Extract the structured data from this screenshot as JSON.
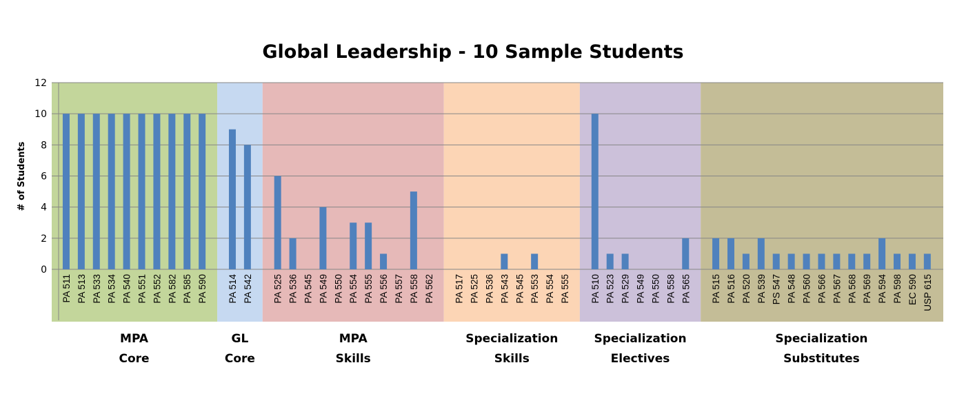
{
  "chart_data": {
    "type": "bar",
    "title": "Global Leadership - 10 Sample Students",
    "ylabel": "# of Students",
    "xlabel": "",
    "ylim": [
      0,
      12
    ],
    "yticks": [
      0,
      2,
      4,
      6,
      8,
      10,
      12
    ],
    "grid": true,
    "bar_color": "#4f81bd",
    "groups": [
      {
        "label_line1": "MPA",
        "label_line2": "Core",
        "color": "#c3d69b",
        "categories": [
          "PA 511",
          "PA 513",
          "PA 533",
          "PA 534",
          "PA 540",
          "PA 551",
          "PA 552",
          "PA 582",
          "PA 585",
          "PA 590"
        ],
        "values": [
          10,
          10,
          10,
          10,
          10,
          10,
          10,
          10,
          10,
          10
        ]
      },
      {
        "label_line1": "GL",
        "label_line2": "Core",
        "color": "#c6d9f1",
        "categories": [
          "PA 514",
          "PA 542"
        ],
        "values": [
          9,
          8
        ]
      },
      {
        "label_line1": "MPA",
        "label_line2": "Skills",
        "color": "#e6b9b8",
        "categories": [
          "PA 525",
          "PA 536",
          "PA 545",
          "PA 549",
          "PA 550",
          "PA 554",
          "PA 555",
          "PA 556",
          "PA 557",
          "PA 558",
          "PA 562"
        ],
        "values": [
          6,
          2,
          0,
          4,
          0,
          3,
          3,
          1,
          0,
          5,
          0
        ]
      },
      {
        "label_line1": "Specialization",
        "label_line2": "Skills",
        "color": "#fcd5b5",
        "categories": [
          "PA 517",
          "PA 525",
          "PA 536",
          "PA 543",
          "PA 545",
          "PA 553",
          "PA 554",
          "PA 555"
        ],
        "values": [
          0,
          0,
          0,
          1,
          0,
          1,
          0,
          0
        ]
      },
      {
        "label_line1": "Specialization",
        "label_line2": "Electives",
        "color": "#ccc1da",
        "categories": [
          "PA 510",
          "PA 523",
          "PA 529",
          "PA 549",
          "PA 550",
          "PA 558",
          "PA 565"
        ],
        "values": [
          10,
          1,
          1,
          0,
          0,
          0,
          2
        ]
      },
      {
        "label_line1": "Specialization",
        "label_line2": "Substitutes",
        "color": "#c4bd97",
        "categories": [
          "PA 515",
          "PA 516",
          "PA 520",
          "PA 539",
          "PS 547",
          "PA 548",
          "PA 560",
          "PA 566",
          "PA 567",
          "PA 568",
          "PA 569",
          "PA 594",
          "PA 598",
          "EC 590",
          "USP 615"
        ],
        "values": [
          2,
          2,
          1,
          2,
          1,
          1,
          1,
          1,
          1,
          1,
          1,
          2,
          1,
          1,
          1
        ]
      }
    ]
  }
}
